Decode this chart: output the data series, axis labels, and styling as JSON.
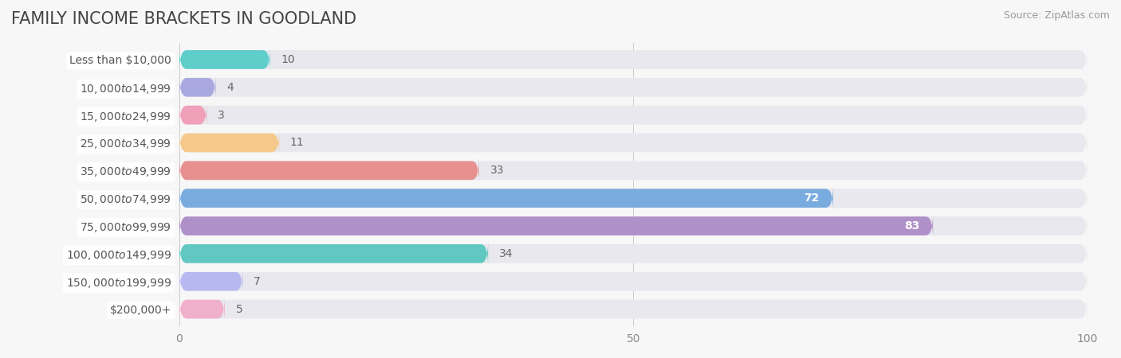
{
  "title": "FAMILY INCOME BRACKETS IN GOODLAND",
  "source": "Source: ZipAtlas.com",
  "categories": [
    "Less than $10,000",
    "$10,000 to $14,999",
    "$15,000 to $24,999",
    "$25,000 to $34,999",
    "$35,000 to $49,999",
    "$50,000 to $74,999",
    "$75,000 to $99,999",
    "$100,000 to $149,999",
    "$150,000 to $199,999",
    "$200,000+"
  ],
  "values": [
    10,
    4,
    3,
    11,
    33,
    72,
    83,
    34,
    7,
    5
  ],
  "bar_colors": [
    "#5ececa",
    "#a9a9e0",
    "#f0a0b8",
    "#f5c98a",
    "#e89090",
    "#7aabdf",
    "#b090c8",
    "#60c8c0",
    "#b8b8f0",
    "#f0b0cc"
  ],
  "label_colors": [
    "black",
    "black",
    "black",
    "black",
    "black",
    "white",
    "white",
    "black",
    "black",
    "black"
  ],
  "xlim": [
    0,
    100
  ],
  "xticks": [
    0,
    50,
    100
  ],
  "background_color": "#f7f7f7",
  "bar_bg_color": "#e8e8ee",
  "title_fontsize": 15,
  "label_fontsize": 10,
  "value_fontsize": 10
}
